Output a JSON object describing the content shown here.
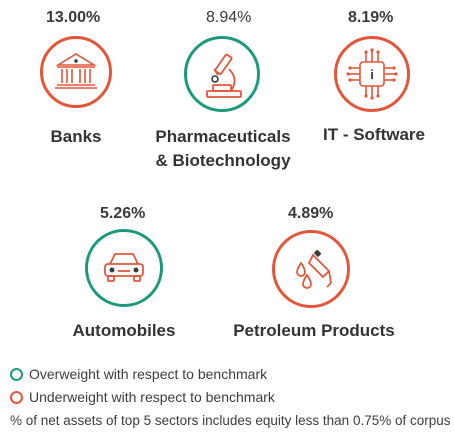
{
  "colors": {
    "overweight": "#1d9a7e",
    "underweight": "#e4553a",
    "icon_dark": "#3b3b3b"
  },
  "sectors": [
    {
      "name": "Banks",
      "percent": "13.00%",
      "icon": "bank-icon",
      "weight": "underweight"
    },
    {
      "name_line1": "Pharmaceuticals",
      "name_line2": "& Biotechnology",
      "percent": "8.94%",
      "icon": "microscope-icon",
      "weight": "overweight"
    },
    {
      "name": "IT - Software",
      "percent": "8.19%",
      "icon": "circuit-chip-icon",
      "weight": "underweight"
    },
    {
      "name": "Automobiles",
      "percent": "5.26%",
      "icon": "car-icon",
      "weight": "overweight"
    },
    {
      "name": "Petroleum Products",
      "percent": "4.89%",
      "icon": "fuel-pump-icon",
      "weight": "underweight"
    }
  ],
  "legend": {
    "overweight": "Overweight with respect to benchmark",
    "underweight": "Underweight with respect to benchmark"
  },
  "footnote": "% of net assets of top 5 sectors includes equity less than 0.75% of corpus"
}
